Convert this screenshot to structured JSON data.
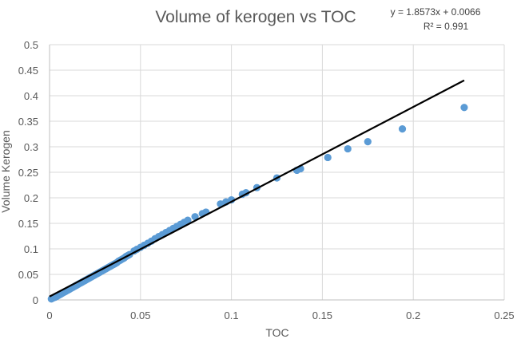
{
  "chart_data": {
    "type": "scatter",
    "title": "Volume of kerogen vs TOC",
    "xlabel": "TOC",
    "ylabel": "Volume Kerogen",
    "xlim": [
      0,
      0.25
    ],
    "ylim": [
      0,
      0.5
    ],
    "xticks": [
      "0",
      "0.05",
      "0.1",
      "0.15",
      "0.2",
      "0.25"
    ],
    "yticks": [
      "0",
      "0.05",
      "0.1",
      "0.15",
      "0.2",
      "0.25",
      "0.3",
      "0.35",
      "0.4",
      "0.45",
      "0.5"
    ],
    "grid": true,
    "legend": "none",
    "point_color": "#5b9bd5",
    "trendline": {
      "type": "linear",
      "slope": 1.8573,
      "intercept": 0.0066,
      "x_range": [
        0,
        0.228
      ],
      "color": "#000000",
      "equation_label": "y = 1.8573x + 0.0066",
      "r2_label": "R² = 0.991"
    },
    "points": [
      [
        0.001,
        0.002
      ],
      [
        0.002,
        0.004
      ],
      [
        0.003,
        0.005
      ],
      [
        0.004,
        0.007
      ],
      [
        0.005,
        0.009
      ],
      [
        0.006,
        0.011
      ],
      [
        0.007,
        0.013
      ],
      [
        0.008,
        0.015
      ],
      [
        0.009,
        0.017
      ],
      [
        0.01,
        0.019
      ],
      [
        0.011,
        0.021
      ],
      [
        0.012,
        0.023
      ],
      [
        0.013,
        0.025
      ],
      [
        0.014,
        0.027
      ],
      [
        0.015,
        0.029
      ],
      [
        0.016,
        0.031
      ],
      [
        0.017,
        0.033
      ],
      [
        0.018,
        0.035
      ],
      [
        0.019,
        0.037
      ],
      [
        0.02,
        0.039
      ],
      [
        0.021,
        0.041
      ],
      [
        0.022,
        0.043
      ],
      [
        0.023,
        0.045
      ],
      [
        0.024,
        0.047
      ],
      [
        0.025,
        0.049
      ],
      [
        0.026,
        0.051
      ],
      [
        0.027,
        0.053
      ],
      [
        0.028,
        0.055
      ],
      [
        0.029,
        0.057
      ],
      [
        0.03,
        0.059
      ],
      [
        0.031,
        0.061
      ],
      [
        0.032,
        0.063
      ],
      [
        0.033,
        0.065
      ],
      [
        0.034,
        0.067
      ],
      [
        0.035,
        0.069
      ],
      [
        0.036,
        0.071
      ],
      [
        0.037,
        0.073
      ],
      [
        0.038,
        0.076
      ],
      [
        0.039,
        0.078
      ],
      [
        0.04,
        0.08
      ],
      [
        0.041,
        0.082
      ],
      [
        0.042,
        0.085
      ],
      [
        0.043,
        0.087
      ],
      [
        0.044,
        0.089
      ],
      [
        0.0465,
        0.096
      ],
      [
        0.048,
        0.099
      ],
      [
        0.05,
        0.103
      ],
      [
        0.052,
        0.107
      ],
      [
        0.054,
        0.111
      ],
      [
        0.056,
        0.115
      ],
      [
        0.058,
        0.12
      ],
      [
        0.06,
        0.124
      ],
      [
        0.062,
        0.128
      ],
      [
        0.064,
        0.132
      ],
      [
        0.066,
        0.136
      ],
      [
        0.068,
        0.14
      ],
      [
        0.07,
        0.144
      ],
      [
        0.072,
        0.148
      ],
      [
        0.074,
        0.152
      ],
      [
        0.076,
        0.156
      ],
      [
        0.08,
        0.163
      ],
      [
        0.084,
        0.169
      ],
      [
        0.086,
        0.172
      ],
      [
        0.094,
        0.188
      ],
      [
        0.097,
        0.192
      ],
      [
        0.1,
        0.196
      ],
      [
        0.106,
        0.207
      ],
      [
        0.108,
        0.21
      ],
      [
        0.114,
        0.22
      ],
      [
        0.125,
        0.239
      ],
      [
        0.136,
        0.254
      ],
      [
        0.138,
        0.257
      ],
      [
        0.153,
        0.279
      ],
      [
        0.164,
        0.296
      ],
      [
        0.175,
        0.31
      ],
      [
        0.194,
        0.335
      ],
      [
        0.228,
        0.377
      ]
    ]
  }
}
